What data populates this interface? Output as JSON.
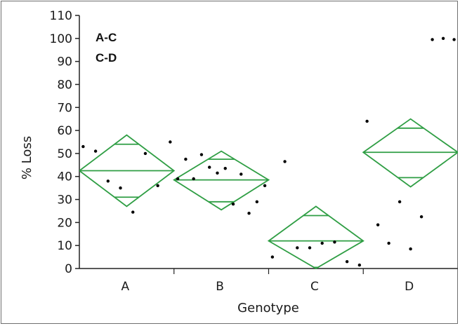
{
  "chart_data": {
    "type": "scatter",
    "title": "",
    "xlabel": "Genotype",
    "ylabel": "% Loss",
    "categories": [
      "A",
      "B",
      "C",
      "D"
    ],
    "ylim": [
      0,
      110
    ],
    "yticks": [
      0,
      10,
      20,
      30,
      40,
      50,
      60,
      70,
      80,
      90,
      100,
      110
    ],
    "grid": false,
    "annotations": [
      "A-C",
      "C-D"
    ],
    "diamond_color": "#2f9e44",
    "point_color": "#000000",
    "group_means": [
      {
        "group": "A",
        "mean": 42.5,
        "lower_ci": 27,
        "upper_ci": 58,
        "lower_overlap": 31,
        "upper_overlap": 54
      },
      {
        "group": "B",
        "mean": 38.5,
        "lower_ci": 25.5,
        "upper_ci": 51,
        "lower_overlap": 29,
        "upper_overlap": 47.5
      },
      {
        "group": "C",
        "mean": 12,
        "lower_ci": 0,
        "upper_ci": 27,
        "lower_overlap": 0.5,
        "upper_overlap": 23
      },
      {
        "group": "D",
        "mean": 50.5,
        "lower_ci": 35.5,
        "upper_ci": 65,
        "lower_overlap": 39.5,
        "upper_overlap": 61
      }
    ],
    "points": {
      "A": [
        53,
        51,
        38,
        35,
        24.5,
        50,
        36,
        55
      ],
      "B": [
        39,
        47.5,
        39,
        49.5,
        44,
        41.5,
        43.5,
        28,
        41,
        24,
        29,
        36
      ],
      "C": [
        5,
        46.5,
        9,
        9,
        11,
        11.5,
        3,
        1.5
      ],
      "D": [
        64,
        19,
        11,
        29,
        8.5,
        22.5,
        99.5,
        100,
        99.5
      ]
    }
  }
}
